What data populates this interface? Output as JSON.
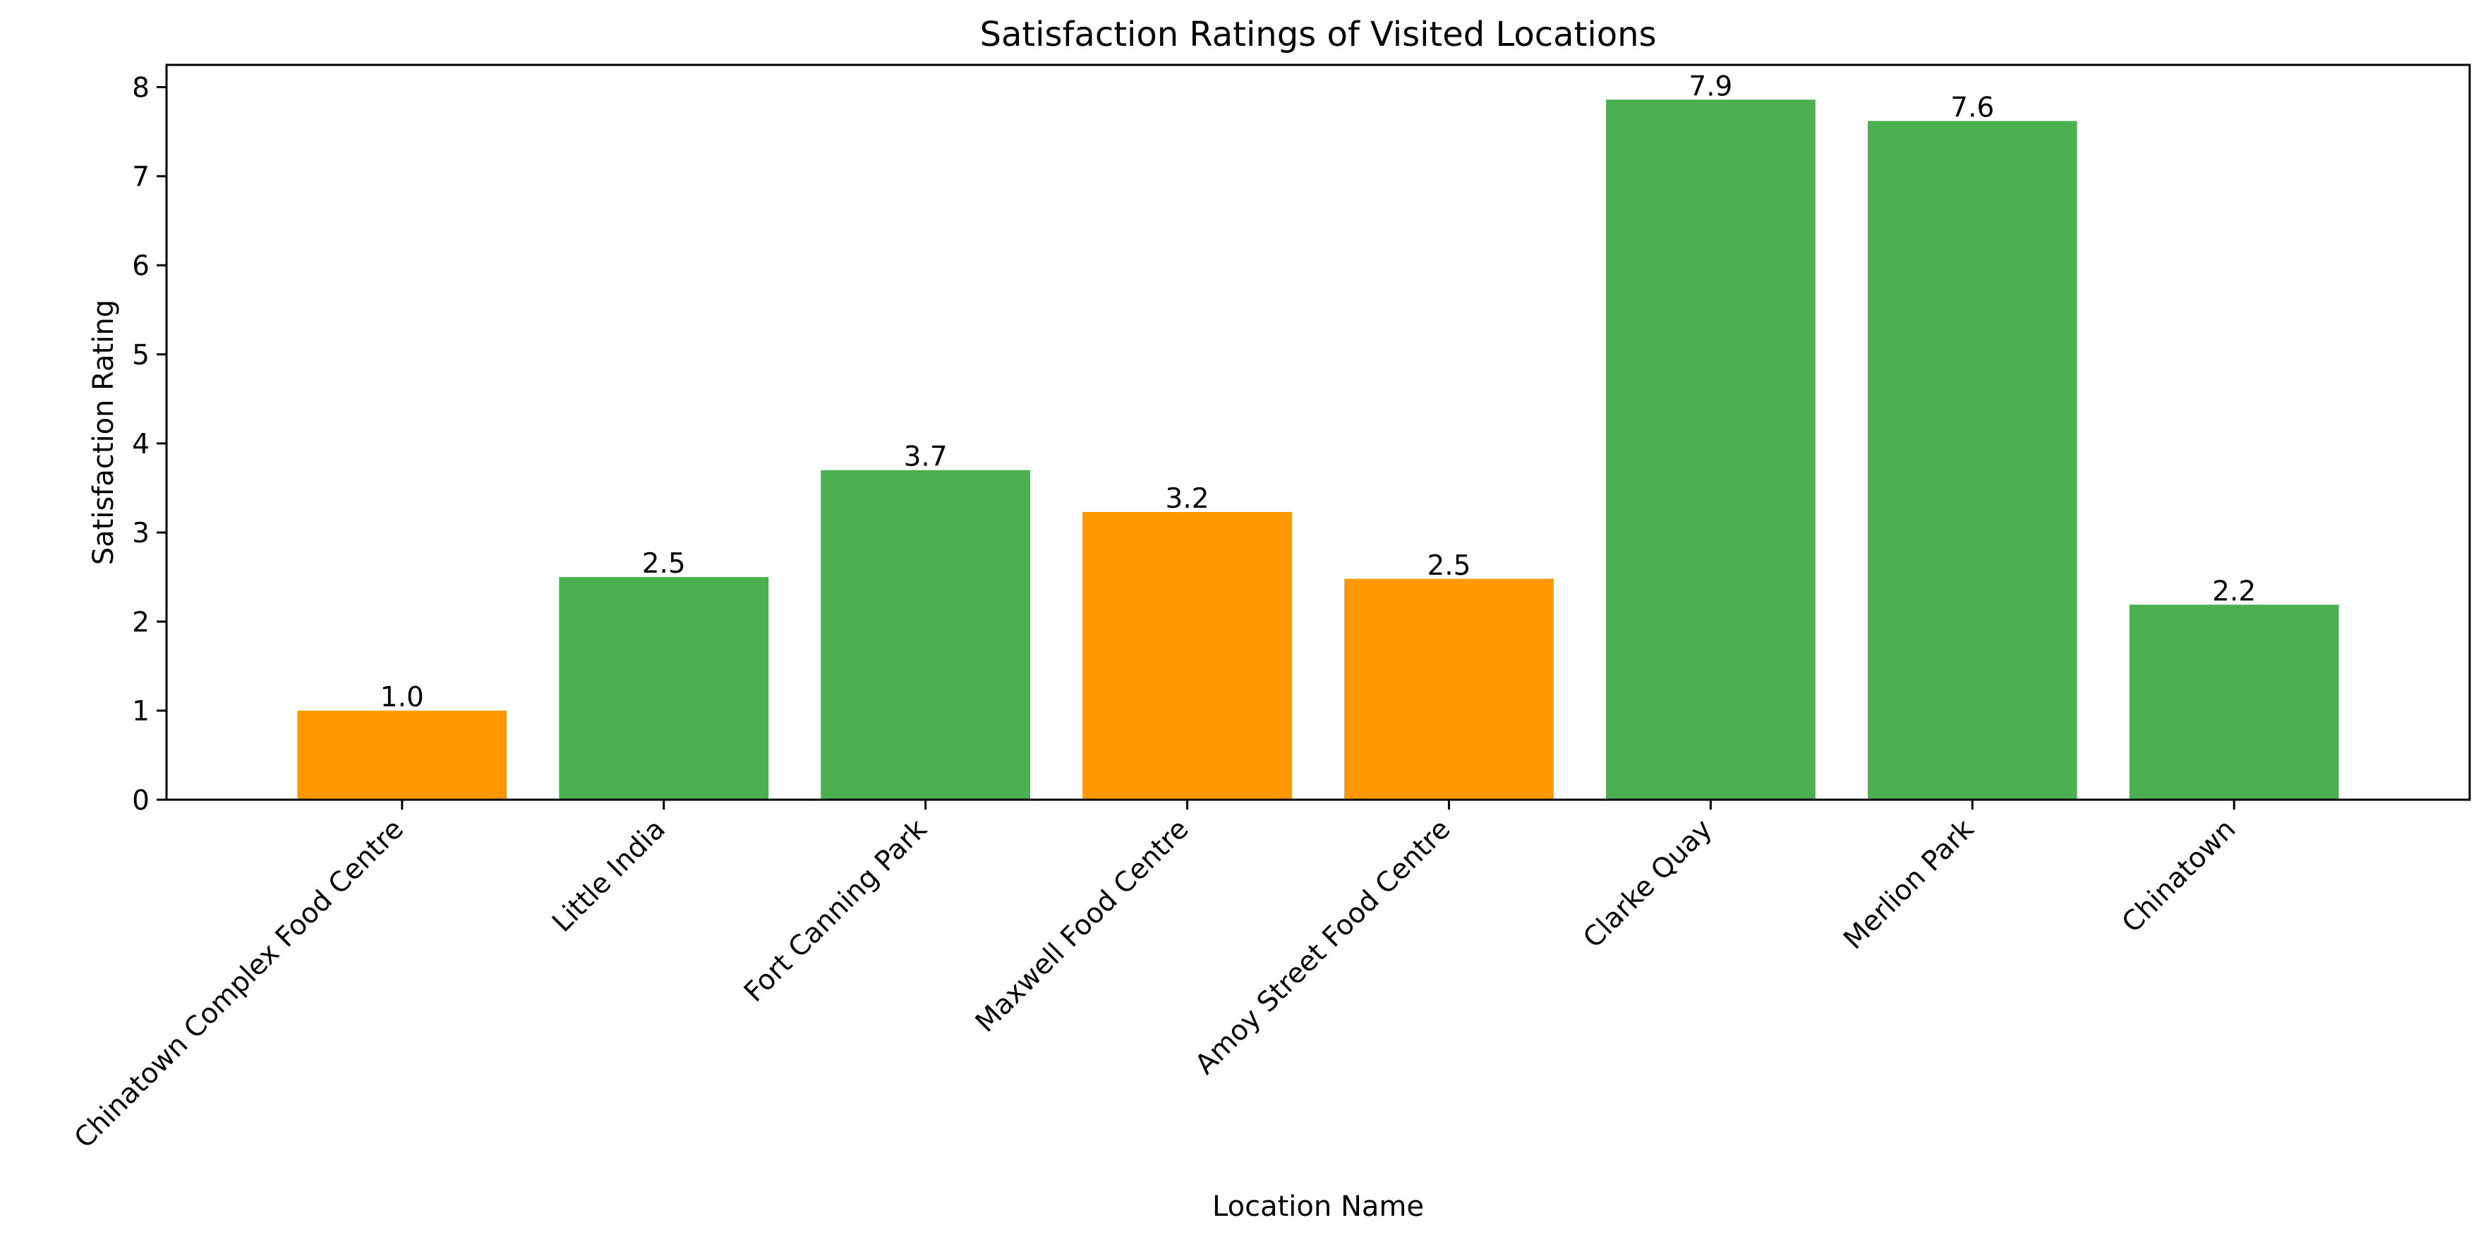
{
  "chart_data": {
    "type": "bar",
    "title": "Satisfaction Ratings of Visited Locations",
    "xlabel": "Location Name",
    "ylabel": "Satisfaction Rating",
    "ylim": [
      0,
      8.25
    ],
    "yticks": [
      0,
      1,
      2,
      3,
      4,
      5,
      6,
      7,
      8
    ],
    "grid": false,
    "categories": [
      "Chinatown Complex Food Centre",
      "Little India",
      "Fort Canning Park",
      "Maxwell Food Centre",
      "Amoy Street Food Centre",
      "Clarke Quay",
      "Merlion Park",
      "Chinatown"
    ],
    "values": [
      1.0,
      2.5,
      3.7,
      3.23,
      2.48,
      7.86,
      7.62,
      2.19
    ],
    "value_labels": [
      "1.0",
      "2.5",
      "3.7",
      "3.2",
      "2.5",
      "7.9",
      "7.6",
      "2.2"
    ],
    "colors": [
      "#FF9800",
      "#4CAF50",
      "#4CAF50",
      "#FF9800",
      "#FF9800",
      "#4CAF50",
      "#4CAF50",
      "#4CAF50"
    ]
  }
}
